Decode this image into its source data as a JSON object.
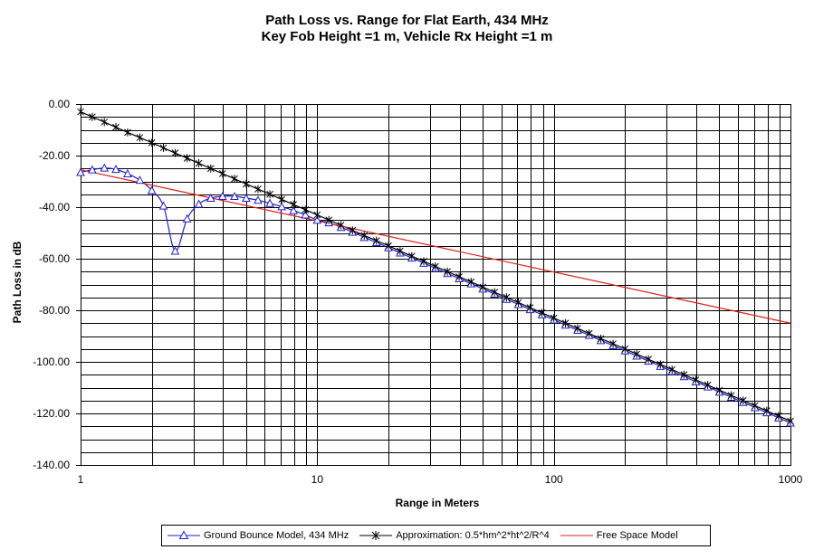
{
  "chart_data": {
    "type": "line",
    "title": "Path Loss vs. Range for Flat Earth, 434 MHz",
    "subtitle": "Key Fob Height =1 m, Vehicle Rx Height =1 m",
    "xlabel": "Range in Meters",
    "ylabel": "Path Loss in dB",
    "xscale": "log",
    "xlim": [
      1,
      1000
    ],
    "ylim": [
      -140,
      0
    ],
    "grid": true,
    "legend_position": "bottom",
    "x_ticks": [
      "1",
      "10",
      "100",
      "1000"
    ],
    "y_ticks": [
      "0.00",
      "-20.00",
      "-40.00",
      "-60.00",
      "-80.00",
      "-100.00",
      "-120.00",
      "-140.00"
    ],
    "series": [
      {
        "name": "Ground Bounce Model, 434 MHz",
        "color": "#1f1fd0",
        "marker": "triangle",
        "x": [
          1,
          1.12,
          1.26,
          1.41,
          1.58,
          1.78,
          2.0,
          2.24,
          2.51,
          2.82,
          3.16,
          3.55,
          3.98,
          4.47,
          5.01,
          5.62,
          6.31,
          7.08,
          7.94,
          8.91,
          10,
          11.2,
          12.6,
          14.1,
          15.8,
          17.8,
          20,
          22.4,
          25.1,
          28.2,
          31.6,
          35.5,
          39.8,
          44.7,
          50.1,
          56.2,
          63.1,
          70.8,
          79.4,
          89.1,
          100,
          112,
          126,
          141,
          158,
          178,
          200,
          224,
          251,
          282,
          316,
          355,
          398,
          447,
          501,
          562,
          631,
          708,
          794,
          891,
          1000
        ],
        "values": [
          -26.5,
          -25.5,
          -24.8,
          -25.3,
          -27.0,
          -29.5,
          -33.5,
          -39.5,
          -57.0,
          -44.5,
          -38.8,
          -36.5,
          -35.8,
          -35.8,
          -36.5,
          -37.3,
          -38.5,
          -39.8,
          -41.3,
          -43.0,
          -45.0,
          -46.0,
          -47.8,
          -49.7,
          -51.7,
          -53.7,
          -55.7,
          -57.7,
          -59.7,
          -61.7,
          -63.7,
          -65.7,
          -67.7,
          -69.7,
          -71.7,
          -73.7,
          -75.7,
          -77.7,
          -79.7,
          -81.7,
          -83.7,
          -85.7,
          -87.7,
          -89.7,
          -91.7,
          -93.7,
          -95.7,
          -97.7,
          -99.7,
          -101.7,
          -103.7,
          -105.7,
          -107.7,
          -109.7,
          -111.7,
          -113.7,
          -115.7,
          -117.7,
          -119.7,
          -121.7,
          -123.7
        ]
      },
      {
        "name": "Approximation: 0.5*hm^2*ht^2/R^4",
        "color": "#000000",
        "marker": "asterisk",
        "x": [
          1,
          1.12,
          1.26,
          1.41,
          1.58,
          1.78,
          2.0,
          2.24,
          2.51,
          2.82,
          3.16,
          3.55,
          3.98,
          4.47,
          5.01,
          5.62,
          6.31,
          7.08,
          7.94,
          8.91,
          10,
          11.2,
          12.6,
          14.1,
          15.8,
          17.8,
          20,
          22.4,
          25.1,
          28.2,
          31.6,
          35.5,
          39.8,
          44.7,
          50.1,
          56.2,
          63.1,
          70.8,
          79.4,
          89.1,
          100,
          112,
          126,
          141,
          158,
          178,
          200,
          224,
          251,
          282,
          316,
          355,
          398,
          447,
          501,
          562,
          631,
          708,
          794,
          891,
          1000
        ],
        "values": [
          -3.0,
          -5.0,
          -7.0,
          -9.0,
          -11.0,
          -13.0,
          -15.0,
          -17.0,
          -19.0,
          -21.0,
          -23.0,
          -25.0,
          -27.0,
          -29.0,
          -31.0,
          -33.0,
          -35.0,
          -37.0,
          -39.0,
          -41.0,
          -43.0,
          -45.0,
          -47.0,
          -49.0,
          -51.0,
          -53.0,
          -55.0,
          -57.0,
          -59.0,
          -61.0,
          -63.0,
          -65.0,
          -67.0,
          -69.0,
          -71.0,
          -73.0,
          -75.0,
          -77.0,
          -79.0,
          -81.0,
          -83.0,
          -85.0,
          -87.0,
          -89.0,
          -91.0,
          -93.0,
          -95.0,
          -97.0,
          -99.0,
          -101.0,
          -103.0,
          -105.0,
          -107.0,
          -109.0,
          -111.0,
          -113.0,
          -115.0,
          -117.0,
          -119.0,
          -121.0,
          -123.0
        ]
      },
      {
        "name": "Free Space Model",
        "color": "#e0201a",
        "marker": "none",
        "x": [
          1,
          1000
        ],
        "values": [
          -25.5,
          -85.0
        ]
      }
    ]
  }
}
